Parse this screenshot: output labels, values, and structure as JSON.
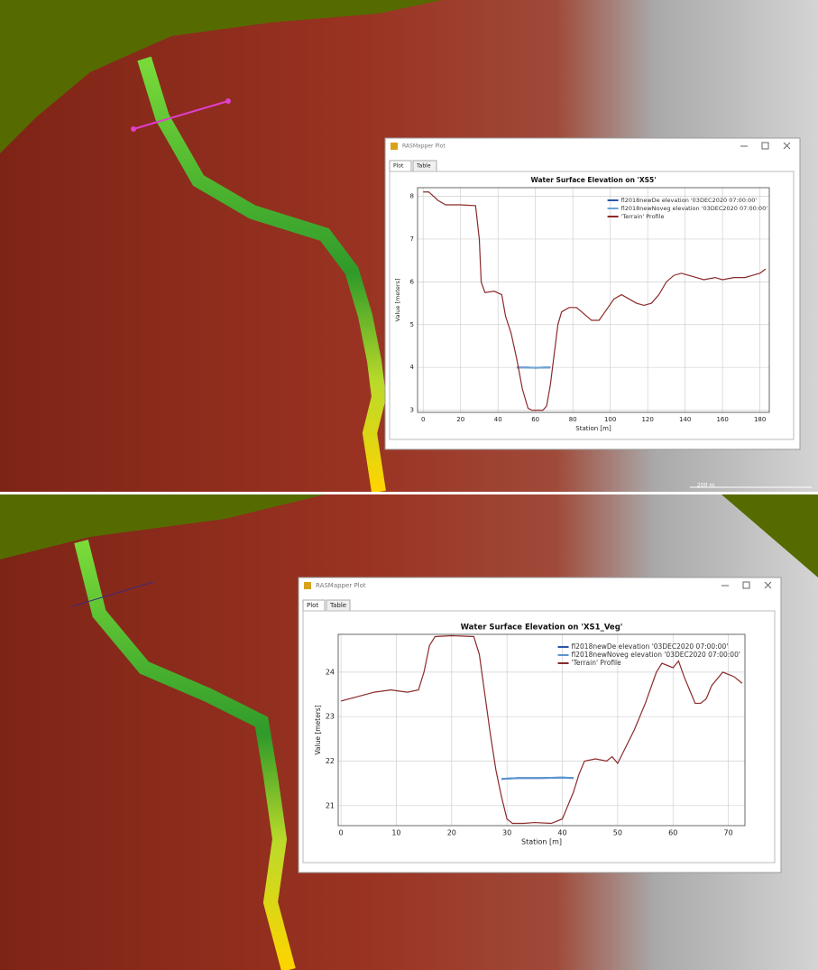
{
  "scale_bar": "200 m",
  "windows": [
    {
      "title": "RASMapper Plot",
      "tabs": [
        "Plot",
        "Table"
      ]
    },
    {
      "title": "RASMapper Plot",
      "tabs": [
        "Plot",
        "Table"
      ]
    }
  ],
  "chart_data": [
    {
      "type": "line",
      "title": "Water Surface Elevation on 'XS5'",
      "x_label": "Station [m]",
      "y_label": "Value [meters]",
      "xlim": [
        -3,
        185
      ],
      "ylim": [
        2.95,
        8.2
      ],
      "xticks": [
        0,
        20,
        40,
        60,
        80,
        100,
        120,
        140,
        160,
        180
      ],
      "yticks": [
        3,
        4,
        5,
        6,
        7,
        8
      ],
      "grid": true,
      "legend": "upper-right",
      "series": [
        {
          "name": "fl2018newDe elevation '03DEC2020 07:00:00'",
          "color": "#2a55a8",
          "x": [
            50,
            55,
            60,
            65,
            68
          ],
          "values": [
            4.0,
            4.0,
            3.99,
            4.0,
            4.0
          ]
        },
        {
          "name": "fl2018newNoveg elevation '03DEC2020 07:00:00'",
          "color": "#6fa3d6",
          "x": [
            50,
            55,
            60,
            65,
            68
          ],
          "values": [
            4.0,
            4.0,
            3.99,
            4.0,
            4.0
          ]
        },
        {
          "name": "'Terrain' Profile",
          "color": "#8b2a2a",
          "x": [
            0,
            3,
            8,
            12,
            20,
            28,
            30,
            31,
            33,
            38,
            42,
            44,
            47,
            50,
            53,
            56,
            58,
            64,
            66,
            68,
            70,
            72,
            74,
            78,
            82,
            86,
            90,
            94,
            98,
            102,
            106,
            110,
            114,
            118,
            122,
            126,
            130,
            134,
            138,
            142,
            146,
            150,
            156,
            160,
            166,
            172,
            176,
            180,
            183
          ],
          "values": [
            8.1,
            8.1,
            7.9,
            7.8,
            7.8,
            7.78,
            7.0,
            6.0,
            5.75,
            5.78,
            5.7,
            5.2,
            4.8,
            4.2,
            3.5,
            3.05,
            3.0,
            3.0,
            3.1,
            3.6,
            4.3,
            5.0,
            5.3,
            5.4,
            5.4,
            5.25,
            5.1,
            5.1,
            5.35,
            5.6,
            5.7,
            5.6,
            5.5,
            5.45,
            5.5,
            5.7,
            6.0,
            6.15,
            6.2,
            6.15,
            6.1,
            6.05,
            6.1,
            6.05,
            6.1,
            6.1,
            6.15,
            6.2,
            6.3
          ]
        }
      ]
    },
    {
      "type": "line",
      "title": "Water Surface Elevation on 'XS1_Veg'",
      "x_label": "Station [m]",
      "y_label": "Value [meters]",
      "xlim": [
        -0.5,
        73
      ],
      "ylim": [
        20.55,
        24.85
      ],
      "xticks": [
        0,
        10,
        20,
        30,
        40,
        50,
        60,
        70
      ],
      "yticks": [
        21,
        22,
        23,
        24
      ],
      "grid": true,
      "legend": "upper-right",
      "series": [
        {
          "name": "fl2018newDe elevation '03DEC2020 07:00:00'",
          "color": "#2a55a8",
          "x": [
            29,
            32,
            36,
            40,
            42
          ],
          "values": [
            21.6,
            21.62,
            21.62,
            21.63,
            21.62
          ]
        },
        {
          "name": "fl2018newNoveg elevation '03DEC2020 07:00:00'",
          "color": "#5b95cf",
          "x": [
            29,
            32,
            36,
            40,
            42
          ],
          "values": [
            21.6,
            21.62,
            21.62,
            21.63,
            21.62
          ]
        },
        {
          "name": "'Terrain' Profile",
          "color": "#8b2a2a",
          "x": [
            0,
            3,
            6,
            9,
            12,
            14,
            15,
            16,
            17,
            20,
            24,
            25,
            26,
            27,
            28,
            29,
            30,
            31,
            33,
            35,
            38,
            40,
            41,
            42,
            43,
            44,
            46,
            48,
            49,
            50,
            51,
            53,
            55,
            57,
            58,
            60,
            61,
            62,
            63,
            64,
            65,
            66,
            67,
            69,
            71,
            72,
            72.5
          ],
          "values": [
            23.35,
            23.45,
            23.55,
            23.6,
            23.55,
            23.6,
            24.0,
            24.6,
            24.8,
            24.82,
            24.8,
            24.4,
            23.5,
            22.6,
            21.8,
            21.2,
            20.7,
            20.6,
            20.6,
            20.62,
            20.6,
            20.7,
            21.0,
            21.3,
            21.7,
            22.0,
            22.05,
            22.0,
            22.1,
            21.95,
            22.2,
            22.7,
            23.3,
            24.0,
            24.2,
            24.1,
            24.25,
            23.9,
            23.6,
            23.3,
            23.3,
            23.4,
            23.7,
            24.0,
            23.9,
            23.8,
            23.75
          ]
        }
      ]
    }
  ]
}
